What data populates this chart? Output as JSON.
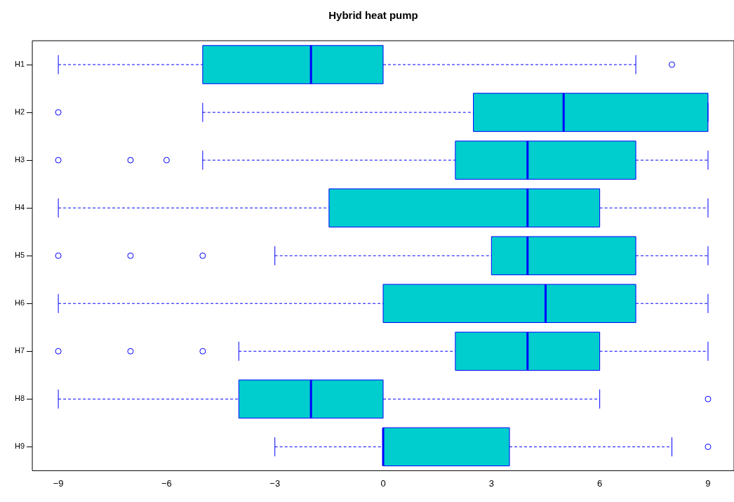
{
  "chart_data": {
    "type": "box",
    "orientation": "horizontal",
    "title": "Hybrid heat pump",
    "categories": [
      "H1",
      "H2",
      "H3",
      "H4",
      "H5",
      "H6",
      "H7",
      "H8",
      "H9"
    ],
    "xlim": [
      -9.72,
      9.72
    ],
    "xticks": [
      -9,
      -6,
      -3,
      0,
      3,
      6,
      9
    ],
    "grid": false,
    "legend": false,
    "series": [
      {
        "color": "#00cdcd",
        "boxes": [
          {
            "low": -9,
            "q1": -5,
            "median": -2,
            "q3": 0,
            "high": 7,
            "outliers": [
              8
            ]
          },
          {
            "low": -5,
            "q1": 2.5,
            "median": 5,
            "q3": 9,
            "high": 9,
            "outliers": [
              -9
            ]
          },
          {
            "low": -5,
            "q1": 2,
            "median": 4,
            "q3": 7,
            "high": 9,
            "outliers": [
              -9,
              -7,
              -6
            ]
          },
          {
            "low": -9,
            "q1": -1.5,
            "median": 4,
            "q3": 6,
            "high": 9
          },
          {
            "low": -3,
            "q1": 3,
            "median": 4,
            "q3": 7,
            "high": 9,
            "outliers": [
              -9,
              -7,
              -5
            ]
          },
          {
            "low": -9,
            "q1": 0,
            "median": 4.5,
            "q3": 7,
            "high": 9
          },
          {
            "low": -4,
            "q1": 2,
            "median": 4,
            "q3": 6,
            "high": 9,
            "outliers": [
              -9,
              -7,
              -5
            ]
          },
          {
            "low": -9,
            "q1": -4,
            "median": -2,
            "q3": 0,
            "high": 6,
            "outliers": [
              9
            ]
          },
          {
            "low": -3,
            "q1": 0,
            "median": 0,
            "q3": 3.5,
            "high": 8,
            "outliers": [
              9
            ]
          }
        ]
      }
    ]
  }
}
